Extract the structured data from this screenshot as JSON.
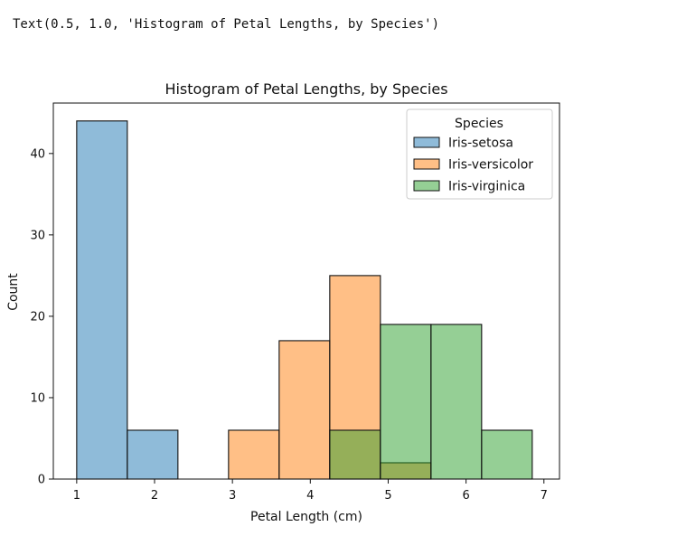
{
  "output_text": "Text(0.5, 1.0, 'Histogram of Petal Lengths, by Species')",
  "chart_data": {
    "type": "bar",
    "subtype": "histogram",
    "title": "Histogram of Petal Lengths, by Species",
    "xlabel": "Petal Length (cm)",
    "ylabel": "Count",
    "xlim": [
      0.7,
      7.2
    ],
    "ylim": [
      0,
      46.2
    ],
    "xticks": [
      1,
      2,
      3,
      4,
      5,
      6,
      7
    ],
    "yticks": [
      0,
      10,
      20,
      30,
      40
    ],
    "bin_edges": [
      1.0,
      1.65,
      2.3,
      2.95,
      3.6,
      4.25,
      4.9,
      5.55,
      6.2,
      6.85
    ],
    "legend": {
      "title": "Species",
      "position": "upper right"
    },
    "series": [
      {
        "name": "Iris-setosa",
        "color": "#1f77b4",
        "values": [
          44,
          6,
          0,
          0,
          0,
          0,
          0,
          0,
          0
        ]
      },
      {
        "name": "Iris-versicolor",
        "color": "#ff7f0e",
        "values": [
          0,
          0,
          0,
          6,
          17,
          25,
          2,
          0,
          0
        ]
      },
      {
        "name": "Iris-virginica",
        "color": "#2ca02c",
        "values": [
          0,
          0,
          0,
          0,
          0,
          6,
          19,
          19,
          6
        ]
      }
    ],
    "grid": false
  }
}
